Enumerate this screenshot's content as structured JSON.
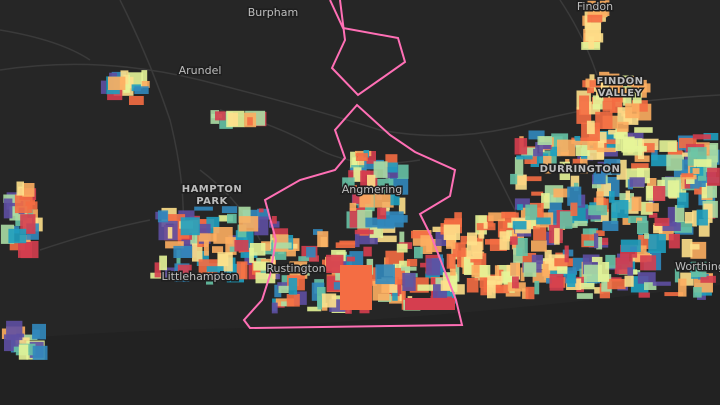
{
  "map": {
    "labels": [
      {
        "lines": [
          "Findon"
        ]
      },
      {
        "lines": [
          "Burpham"
        ]
      },
      {
        "lines": [
          "Arundel"
        ]
      },
      {
        "lines": [
          "FINDON",
          "VALLEY"
        ]
      },
      {
        "lines": [
          "HAMPTON",
          "PARK"
        ]
      },
      {
        "lines": [
          "DURRINGTON"
        ]
      },
      {
        "lines": [
          "Angmering"
        ]
      },
      {
        "lines": [
          "Littlehampton"
        ]
      },
      {
        "lines": [
          "Rustington"
        ]
      },
      {
        "lines": [
          "Worthing"
        ]
      }
    ]
  }
}
